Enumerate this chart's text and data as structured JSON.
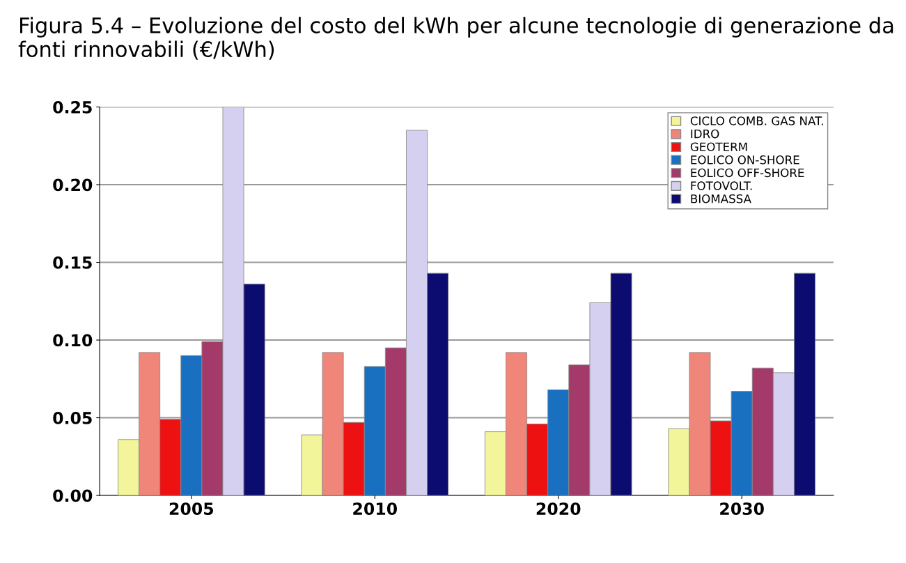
{
  "chart_data": {
    "type": "bar",
    "title": "Figura 5.4 – Evoluzione del costo del kWh per alcune tecnologie di generazione da fonti rinnovabili (€/kWh)",
    "categories": [
      "2005",
      "2010",
      "2020",
      "2030"
    ],
    "series": [
      {
        "name": "CICLO COMB. GAS NAT.",
        "color": "#f2f59a",
        "values": [
          0.036,
          0.039,
          0.041,
          0.043
        ]
      },
      {
        "name": "IDRO",
        "color": "#f0857a",
        "values": [
          0.092,
          0.092,
          0.092,
          0.092
        ]
      },
      {
        "name": "GEOTERM",
        "color": "#ee1111",
        "values": [
          0.049,
          0.047,
          0.046,
          0.048
        ]
      },
      {
        "name": "EOLICO ON-SHORE",
        "color": "#1a70c0",
        "values": [
          0.09,
          0.083,
          0.068,
          0.067
        ]
      },
      {
        "name": "EOLICO OFF-SHORE",
        "color": "#a33a6a",
        "values": [
          0.099,
          0.095,
          0.084,
          0.082
        ]
      },
      {
        "name": "FOTOVOLT.",
        "color": "#d6d0f0",
        "values": [
          0.25,
          0.235,
          0.124,
          0.079
        ]
      },
      {
        "name": "BIOMASSA",
        "color": "#0c0c70",
        "values": [
          0.136,
          0.143,
          0.143,
          0.143
        ]
      }
    ],
    "ylim": [
      0,
      0.25
    ],
    "yticks": [
      {
        "value": 0,
        "label": "0.00"
      },
      {
        "value": 0.05,
        "label": "0.05"
      },
      {
        "value": 0.1,
        "label": "0.10"
      },
      {
        "value": 0.15,
        "label": "0.15"
      },
      {
        "value": 0.2,
        "label": "0.20"
      },
      {
        "value": 0.25,
        "label": "0.25"
      }
    ],
    "grid": "y",
    "legend": "top right"
  }
}
